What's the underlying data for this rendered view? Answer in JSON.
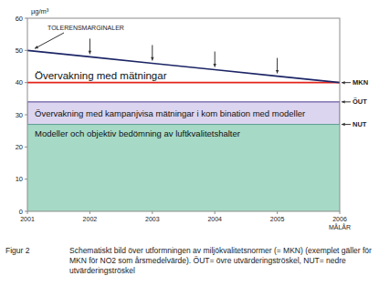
{
  "chart_data": {
    "type": "line",
    "ylabel": "µg/m³",
    "x": [
      2001,
      2002,
      2003,
      2004,
      2005,
      2006
    ],
    "xlim": [
      2001,
      2006
    ],
    "xticks": [
      2001,
      2002,
      2003,
      2004,
      2005,
      2006
    ],
    "target_label": "MÅLÅR",
    "ylim": [
      0,
      60
    ],
    "yticks": [
      0,
      10,
      20,
      30,
      40,
      50,
      60
    ],
    "grid": false,
    "series": [
      {
        "name": "TOLERENSMARGINALER",
        "color": "#1c2566",
        "values": [
          50,
          48,
          46,
          44,
          42,
          40
        ]
      }
    ],
    "thresholds": [
      {
        "label": "MKN",
        "value": 40,
        "color": "#e3231b",
        "note": "Övervakning med mätningar"
      },
      {
        "label": "ÖUT",
        "value": 34,
        "color": "#6a5a9e"
      },
      {
        "label": "NUT",
        "value": 27,
        "color": "#4f9c84"
      }
    ],
    "bands": [
      {
        "label": "Övervakning med kampanjvisa mätningar i kom bination med modeller",
        "from": 27,
        "to": 34,
        "color": "#dcd5ef"
      },
      {
        "label": "Modeller och objektiv bedömning av luftkvalitetshalter",
        "from": 0,
        "to": 27,
        "color": "#a6dac6"
      }
    ],
    "figure_label": "Figur 2",
    "caption": "Schematiskt bild över utformningen av miljökvalitetsnormer (= MKN) (exemplet gäller för MKN för NO2 som årsmedelvärde). ÖUT= övre utvärderingströskel, NUT= nedre utvärderingströskel"
  }
}
